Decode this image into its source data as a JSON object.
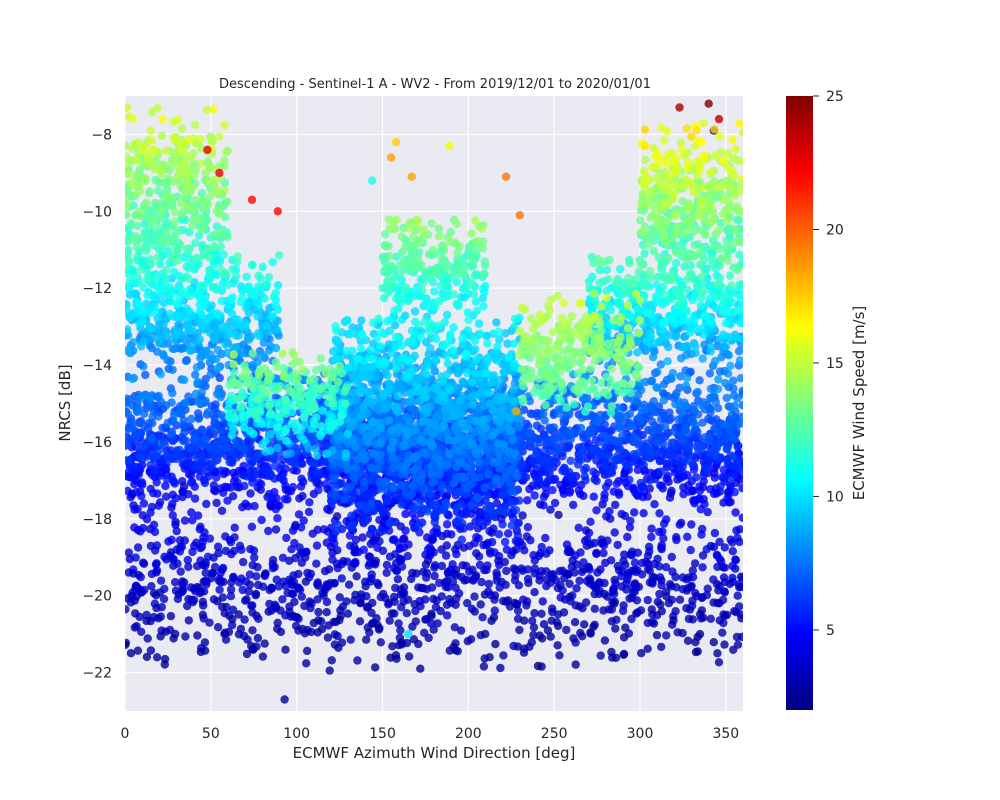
{
  "chart_data": {
    "type": "scatter",
    "title": "Descending - Sentinel-1 A - WV2 - From 2019/12/01 to 2020/01/01",
    "xlabel": "ECMWF Azimuth Wind Direction [deg]",
    "ylabel": "NRCS [dB]",
    "xlim": [
      0,
      360
    ],
    "ylim": [
      -23,
      -7
    ],
    "xticks": [
      "0",
      "50",
      "100",
      "150",
      "200",
      "250",
      "300",
      "350"
    ],
    "yticks": [
      "−8",
      "−10",
      "−12",
      "−14",
      "−16",
      "−18",
      "−20",
      "−22"
    ],
    "grid": true,
    "background": "#eaeaf2",
    "colorbar": {
      "label": "ECMWF Wind Speed [m/s]",
      "range": [
        2,
        25
      ],
      "ticks": [
        "5",
        "10",
        "15",
        "20",
        "25"
      ],
      "colormap": "jet"
    },
    "colormap_stops": [
      "#00007f",
      "#0000ff",
      "#007fff",
      "#00ffff",
      "#7fff7f",
      "#ffff00",
      "#ff7f00",
      "#ff0000",
      "#7f0000"
    ],
    "sample_points": [
      {
        "x": 93,
        "y": -22.7,
        "c": 2.5
      },
      {
        "x": 48,
        "y": -8.4,
        "c": 22.5
      },
      {
        "x": 55,
        "y": -9.0,
        "c": 22.5
      },
      {
        "x": 74,
        "y": -9.7,
        "c": 22.0
      },
      {
        "x": 89,
        "y": -10.0,
        "c": 22.0
      },
      {
        "x": 155,
        "y": -8.6,
        "c": 18.5
      },
      {
        "x": 158,
        "y": -8.2,
        "c": 17.5
      },
      {
        "x": 167,
        "y": -9.1,
        "c": 18.5
      },
      {
        "x": 189,
        "y": -8.3,
        "c": 16.0
      },
      {
        "x": 222,
        "y": -9.1,
        "c": 19.5
      },
      {
        "x": 230,
        "y": -10.1,
        "c": 19.5
      },
      {
        "x": 228,
        "y": -15.2,
        "c": 18.5
      },
      {
        "x": 144,
        "y": -9.2,
        "c": 11.0
      },
      {
        "x": 172,
        "y": -21.9,
        "c": 2.5
      },
      {
        "x": 165,
        "y": -21.0,
        "c": 10.0
      },
      {
        "x": 340,
        "y": -7.2,
        "c": 25.0
      },
      {
        "x": 323,
        "y": -7.3,
        "c": 24.0
      },
      {
        "x": 343,
        "y": -7.9,
        "c": 3.0
      },
      {
        "x": 346,
        "y": -7.6,
        "c": 23.5
      }
    ],
    "clusters": [
      {
        "x": [
          120,
          230
        ],
        "y": [
          -19,
          -12.5
        ],
        "c": [
          3,
          12
        ],
        "count": 1900
      },
      {
        "x": [
          150,
          210
        ],
        "y": [
          -13,
          -10
        ],
        "c": [
          9,
          15
        ],
        "count": 260
      },
      {
        "x": [
          0,
          60
        ],
        "y": [
          -12.5,
          -7
        ],
        "c": [
          9,
          17
        ],
        "count": 420
      },
      {
        "x": [
          300,
          360
        ],
        "y": [
          -12.5,
          -7.5
        ],
        "c": [
          9,
          18
        ],
        "count": 420
      },
      {
        "x": [
          0,
          360
        ],
        "y": [
          -18,
          -14
        ],
        "c": [
          3,
          9
        ],
        "count": 2600
      },
      {
        "x": [
          0,
          360
        ],
        "y": [
          -22,
          -17.5
        ],
        "c": [
          2,
          5
        ],
        "count": 1100
      },
      {
        "x": [
          0,
          90
        ],
        "y": [
          -14.5,
          -11
        ],
        "c": [
          6,
          13
        ],
        "count": 500
      },
      {
        "x": [
          270,
          360
        ],
        "y": [
          -14.5,
          -11
        ],
        "c": [
          6,
          14
        ],
        "count": 500
      },
      {
        "x": [
          230,
          300
        ],
        "y": [
          -15.5,
          -12
        ],
        "c": [
          11,
          16
        ],
        "count": 260
      },
      {
        "x": [
          60,
          130
        ],
        "y": [
          -16.5,
          -13.5
        ],
        "c": [
          8,
          15
        ],
        "count": 260
      }
    ]
  }
}
